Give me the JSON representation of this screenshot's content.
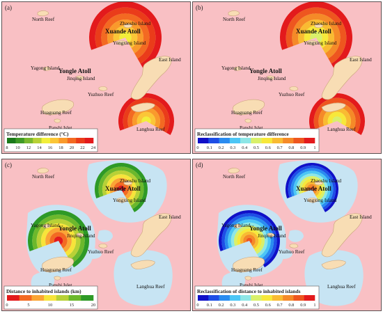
{
  "panels": [
    {
      "id": "a",
      "label": "(a)",
      "background": "#f9c0c4",
      "legend_title": "Temperature difference (°C)",
      "legend_ticks": [
        "8",
        "10",
        "12",
        "14",
        "16",
        "18",
        "20",
        "22",
        "24"
      ],
      "legend_colors": [
        "#1a7a1a",
        "#3f9a26",
        "#79b82e",
        "#b8d136",
        "#f2ee3a",
        "#fbc637",
        "#f99a2c",
        "#f36a22",
        "#ea3c1a",
        "#e31a1c"
      ]
    },
    {
      "id": "b",
      "label": "(b)",
      "background": "#f9c0c4",
      "legend_title": "Reclassification of temperature difference",
      "legend_ticks": [
        "0",
        "0.1",
        "0.2",
        "0.3",
        "0.4",
        "0.5",
        "0.6",
        "0.7",
        "0.8",
        "0.9",
        "1"
      ],
      "legend_colors": [
        "#1010c8",
        "#1e4ee6",
        "#2a8cf0",
        "#4cc6f5",
        "#8de6e6",
        "#d9f06a",
        "#f7e83a",
        "#f9bb32",
        "#f58a28",
        "#ee561f",
        "#e31a1c"
      ]
    },
    {
      "id": "c",
      "label": "(c)",
      "background": "#f9c0c4",
      "legend_title": "Distance to inhabited islands (km)",
      "legend_ticks": [
        "0",
        "5",
        "10",
        "15",
        "20"
      ],
      "legend_colors": [
        "#e31a1c",
        "#f36a22",
        "#fba535",
        "#f7e43a",
        "#b8d136",
        "#6cb82c",
        "#2e9a26"
      ]
    },
    {
      "id": "d",
      "label": "(d)",
      "background": "#f9c0c4",
      "legend_title": "Reclassification of distance to inhabited islands",
      "legend_ticks": [
        "0",
        "0.1",
        "0.2",
        "0.3",
        "0.4",
        "0.5",
        "0.6",
        "0.7",
        "0.8",
        "0.9",
        "1"
      ],
      "legend_colors": [
        "#1010c8",
        "#1e4ee6",
        "#2a8cf0",
        "#4cc6f5",
        "#8de6e6",
        "#d9f06a",
        "#f7e83a",
        "#f9bb32",
        "#f58a28",
        "#ee561f",
        "#e31a1c"
      ]
    }
  ],
  "labels": {
    "north_reef": "North Reef",
    "zhaoshu": "Zhaoshu Island",
    "xuande": "Xuande Atoll",
    "yongxing": "Yongxing Island",
    "east_island": "East Island",
    "yagong": "Yagong Island",
    "yongle": "Yongle Atoll",
    "jinqing": "Jinqing Island",
    "yuzhuo": "Yuzhuo Reef",
    "huaguang": "Huaguang Reef",
    "panshi": "Panshi Islet",
    "langhua": "Langhua Reef"
  },
  "colors": {
    "sea": "#f9c0c4",
    "reef_area": "#c7e4f3",
    "island": "#f8ddb4",
    "island_outline": "#c9a37a",
    "frame": "#333333"
  }
}
